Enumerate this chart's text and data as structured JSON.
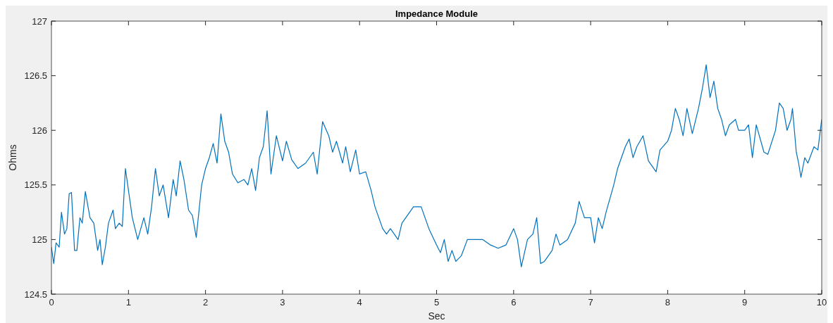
{
  "chart_data": {
    "type": "line",
    "title": "Impedance Module",
    "xlabel": "Sec",
    "ylabel": "Ohms",
    "xlim": [
      0,
      10
    ],
    "ylim": [
      124.5,
      127
    ],
    "xticks": [
      0,
      1,
      2,
      3,
      4,
      5,
      6,
      7,
      8,
      9,
      10
    ],
    "yticks": [
      124.5,
      125,
      125.5,
      126,
      126.5,
      127
    ],
    "grid": false,
    "marker": "none",
    "line_style": "solid",
    "series": [
      {
        "color": "#0072bd",
        "x": [
          0,
          0.03,
          0.06,
          0.1,
          0.13,
          0.17,
          0.2,
          0.23,
          0.26,
          0.3,
          0.33,
          0.37,
          0.4,
          0.44,
          0.5,
          0.55,
          0.6,
          0.63,
          0.66,
          0.7,
          0.74,
          0.8,
          0.83,
          0.88,
          0.92,
          0.96,
          1.05,
          1.12,
          1.2,
          1.25,
          1.3,
          1.35,
          1.4,
          1.45,
          1.52,
          1.58,
          1.62,
          1.67,
          1.72,
          1.78,
          1.83,
          1.88,
          1.95,
          2,
          2.05,
          2.1,
          2.15,
          2.2,
          2.25,
          2.3,
          2.35,
          2.42,
          2.5,
          2.55,
          2.6,
          2.65,
          2.7,
          2.75,
          2.8,
          2.85,
          2.92,
          3,
          3.05,
          3.12,
          3.2,
          3.3,
          3.4,
          3.45,
          3.52,
          3.6,
          3.65,
          3.7,
          3.78,
          3.82,
          3.88,
          3.95,
          4,
          4.08,
          4.15,
          4.2,
          4.3,
          4.35,
          4.4,
          4.5,
          4.55,
          4.6,
          4.65,
          4.7,
          4.8,
          4.9,
          5,
          5.05,
          5.1,
          5.15,
          5.2,
          5.25,
          5.32,
          5.4,
          5.5,
          5.6,
          5.7,
          5.8,
          5.9,
          6,
          6.05,
          6.1,
          6.18,
          6.25,
          6.3,
          6.35,
          6.4,
          6.5,
          6.55,
          6.6,
          6.7,
          6.8,
          6.85,
          6.92,
          7,
          7.05,
          7.1,
          7.15,
          7.2,
          7.3,
          7.35,
          7.4,
          7.45,
          7.5,
          7.55,
          7.6,
          7.68,
          7.75,
          7.85,
          7.9,
          8,
          8.05,
          8.1,
          8.15,
          8.2,
          8.25,
          8.32,
          8.4,
          8.45,
          8.5,
          8.55,
          8.6,
          8.65,
          8.7,
          8.75,
          8.8,
          8.88,
          8.92,
          9,
          9.05,
          9.1,
          9.15,
          9.25,
          9.3,
          9.4,
          9.45,
          9.5,
          9.55,
          9.6,
          9.62,
          9.67,
          9.7,
          9.73,
          9.78,
          9.82,
          9.9,
          9.95,
          10
        ],
        "values": [
          124.93,
          124.78,
          124.97,
          124.93,
          125.25,
          125.05,
          125.1,
          125.42,
          125.43,
          124.9,
          124.9,
          125.2,
          125.15,
          125.44,
          125.2,
          125.15,
          124.9,
          125,
          124.77,
          124.93,
          125.15,
          125.27,
          125.1,
          125.15,
          125.12,
          125.65,
          125.2,
          125,
          125.2,
          125.05,
          125.3,
          125.65,
          125.4,
          125.5,
          125.2,
          125.55,
          125.4,
          125.72,
          125.55,
          125.27,
          125.22,
          125.02,
          125.5,
          125.65,
          125.75,
          125.88,
          125.7,
          126.15,
          125.9,
          125.8,
          125.6,
          125.52,
          125.55,
          125.5,
          125.65,
          125.45,
          125.75,
          125.85,
          126.18,
          125.6,
          125.95,
          125.72,
          125.9,
          125.73,
          125.65,
          125.7,
          125.8,
          125.6,
          126.08,
          125.95,
          125.8,
          125.9,
          125.7,
          125.85,
          125.62,
          125.82,
          125.6,
          125.62,
          125.45,
          125.3,
          125.1,
          125.05,
          125.1,
          125,
          125.15,
          125.2,
          125.25,
          125.3,
          125.3,
          125.1,
          124.95,
          124.88,
          125,
          124.8,
          124.9,
          124.8,
          124.85,
          125,
          125,
          125,
          124.95,
          124.92,
          124.95,
          125.1,
          125,
          124.75,
          125,
          125.05,
          125.2,
          124.78,
          124.8,
          124.9,
          125.05,
          124.95,
          125,
          125.15,
          125.35,
          125.2,
          125.2,
          124.97,
          125.2,
          125.1,
          125.25,
          125.5,
          125.65,
          125.75,
          125.85,
          125.92,
          125.75,
          125.85,
          125.95,
          125.72,
          125.62,
          125.82,
          125.9,
          126,
          126.2,
          126.1,
          125.95,
          126.2,
          125.97,
          126.2,
          126.38,
          126.6,
          126.3,
          126.45,
          126.2,
          126.1,
          125.95,
          126.05,
          126.1,
          126,
          126,
          126.05,
          125.75,
          126.05,
          125.8,
          125.78,
          126,
          126.25,
          126.2,
          126,
          126.1,
          126.2,
          125.8,
          125.7,
          125.57,
          125.75,
          125.7,
          125.85,
          125.82,
          126.1
        ]
      }
    ]
  }
}
